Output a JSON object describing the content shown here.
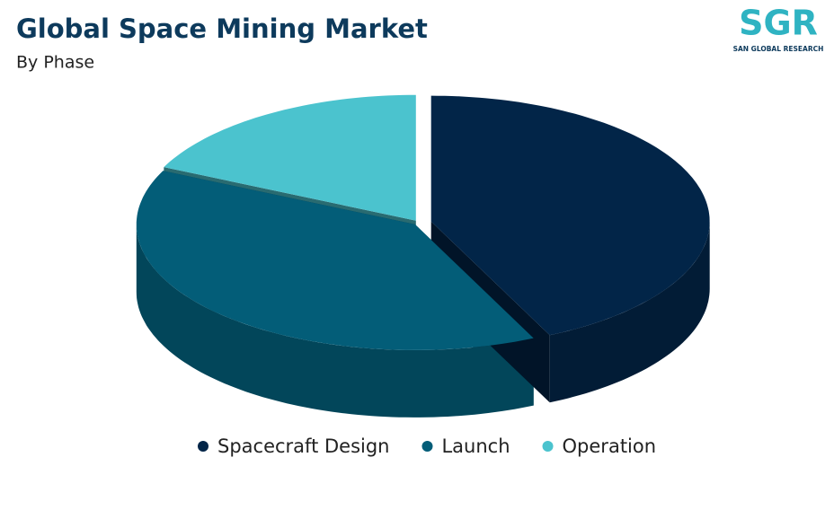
{
  "chart_data": {
    "type": "pie3d",
    "title": "Global Space Mining Market",
    "subtitle": "By Phase",
    "categories": [
      "Spacecraft Design",
      "Launch",
      "Operation"
    ],
    "values": [
      43,
      39,
      18
    ],
    "colors": [
      "#022548",
      "#035d78",
      "#4bc3ce"
    ],
    "legend": "bottom"
  },
  "logo": {
    "text": "SGR",
    "tagline": "SAN GLOBAL RESEARCH"
  }
}
